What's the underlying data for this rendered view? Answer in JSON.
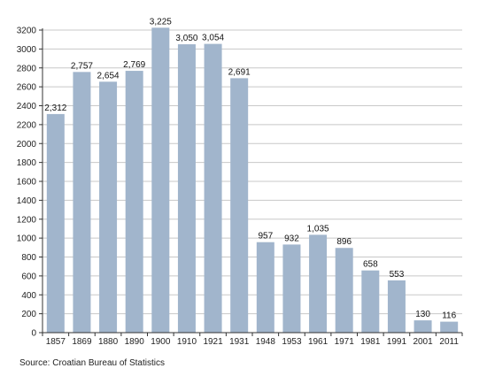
{
  "chart_data": {
    "type": "bar",
    "categories": [
      "1857",
      "1869",
      "1880",
      "1890",
      "1900",
      "1910",
      "1921",
      "1931",
      "1948",
      "1953",
      "1961",
      "1971",
      "1981",
      "1991",
      "2001",
      "2011"
    ],
    "values": [
      2312,
      2757,
      2654,
      2769,
      3225,
      3050,
      3054,
      2691,
      957,
      932,
      1035,
      896,
      658,
      553,
      130,
      116
    ],
    "value_labels": [
      "2,312",
      "2,757",
      "2,654",
      "2,769",
      "3,225",
      "3,050",
      "3,054",
      "2,691",
      "957",
      "932",
      "1,035",
      "896",
      "658",
      "553",
      "130",
      "116"
    ],
    "ylim": [
      0,
      3200
    ],
    "yticks": [
      0,
      200,
      400,
      600,
      800,
      1000,
      1200,
      1400,
      1600,
      1800,
      2000,
      2200,
      2400,
      2600,
      2800,
      3000,
      3200
    ],
    "grid": true,
    "bar_color": "#a1b5cc",
    "grid_color": "#c8c8c8"
  },
  "source": "Source: Croatian Bureau of Statistics"
}
